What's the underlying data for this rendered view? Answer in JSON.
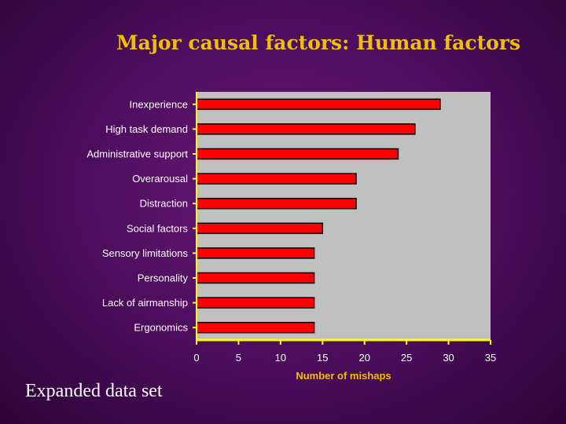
{
  "slide": {
    "title": "Major causal factors: Human factors",
    "footer": "Expanded data set"
  },
  "colors": {
    "bar": "#ff0000",
    "plot_background": "#c0c0c0",
    "axis": "#ffff00",
    "title": "#f0c000"
  },
  "chart_data": {
    "type": "bar",
    "orientation": "horizontal",
    "categories": [
      "Inexperience",
      "High task demand",
      "Administrative support",
      "Overarousal",
      "Distraction",
      "Social factors",
      "Sensory limitations",
      "Personality",
      "Lack of airmanship",
      "Ergonomics"
    ],
    "values": [
      29,
      26,
      24,
      19,
      19,
      15,
      14,
      14,
      14,
      14
    ],
    "xlabel": "Number of mishaps",
    "ylabel": "",
    "xlim": [
      0,
      35
    ],
    "xticks": [
      0,
      5,
      10,
      15,
      20,
      25,
      30,
      35
    ],
    "grid": false
  }
}
